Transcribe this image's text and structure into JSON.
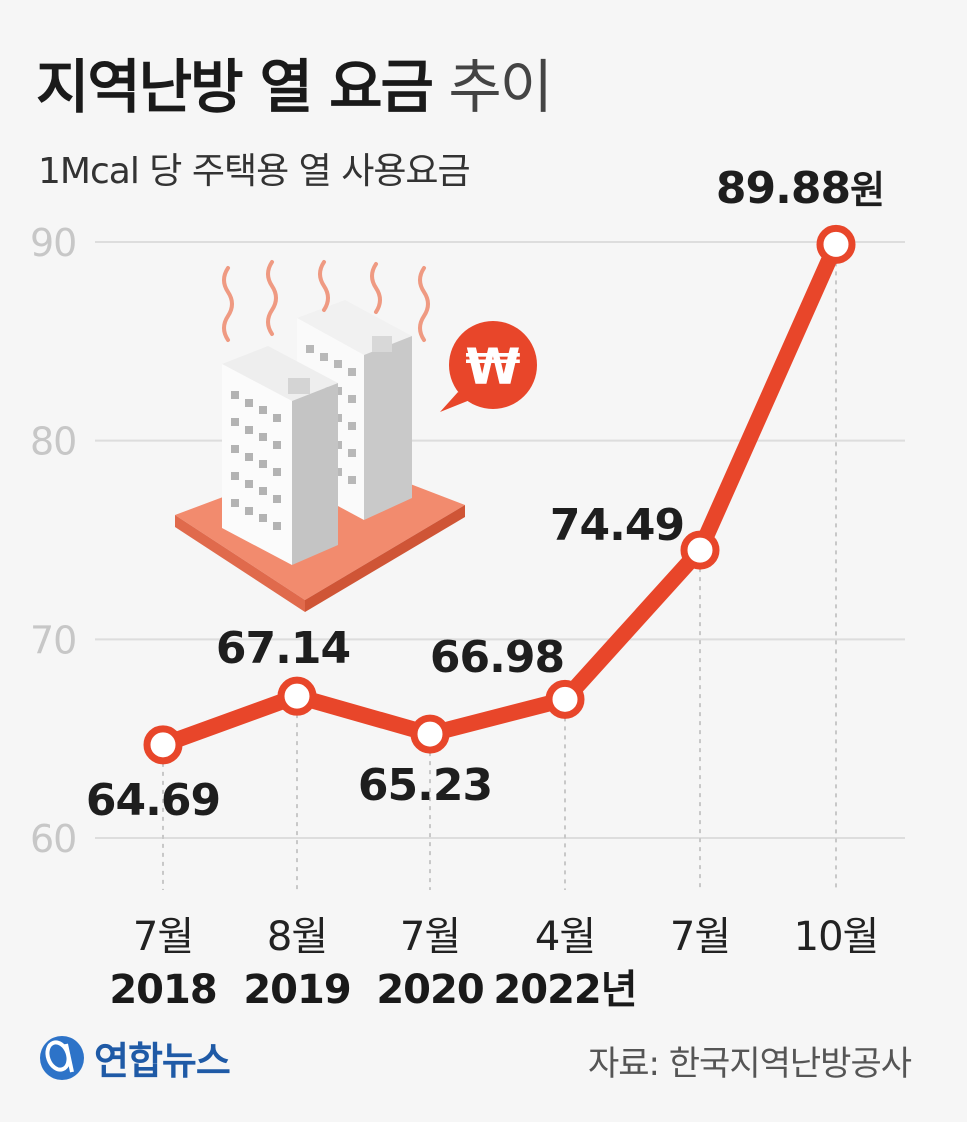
{
  "header": {
    "title_bold": "지역난방 열 요금",
    "title_light": "추이",
    "subtitle": "1Mcal 당 주택용 열 사용요금"
  },
  "footer": {
    "logo_text": "연합뉴스",
    "source": "자료: 한국지역난방공사"
  },
  "colors": {
    "line": "#e8462a",
    "grid": "#dddddd",
    "tick": "#c7c7c7",
    "text": "#1e1e1e"
  },
  "chart_data": {
    "type": "line",
    "title": "지역난방 열 요금 추이",
    "subtitle": "1Mcal 당 주택용 열 사용요금",
    "categories": [
      {
        "month": "7월",
        "year": "2018"
      },
      {
        "month": "8월",
        "year": "2019"
      },
      {
        "month": "7월",
        "year": "2020"
      },
      {
        "month": "4월",
        "year": "2022년"
      },
      {
        "month": "7월",
        "year": ""
      },
      {
        "month": "10월",
        "year": ""
      }
    ],
    "values": [
      64.69,
      67.14,
      65.23,
      66.98,
      74.49,
      89.88
    ],
    "value_labels": [
      "64.69",
      "67.14",
      "65.23",
      "66.98",
      "74.49",
      "89.88"
    ],
    "last_label_unit": "원",
    "y_ticks": [
      60,
      70,
      80,
      90
    ],
    "y_tick_labels": [
      "60",
      "70",
      "80",
      "90"
    ],
    "ylim": [
      60,
      90
    ],
    "grid": true,
    "legend": "none"
  }
}
